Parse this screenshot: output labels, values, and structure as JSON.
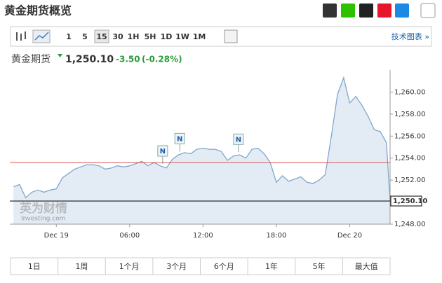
{
  "header": {
    "title": "黄金期货概览"
  },
  "toolbar": {
    "intervals": [
      "1",
      "5",
      "15",
      "30",
      "1H",
      "5H",
      "1D",
      "1W",
      "1M"
    ],
    "technical_chart": "技术图表 »"
  },
  "quote": {
    "name": "黄金期货",
    "price": "1,250.10",
    "change": "-3.50",
    "change_pct": "(-0.28%)"
  },
  "watermark": [
    "英为财情",
    "Investing.com"
  ],
  "chart_data": {
    "type": "area",
    "color": "#7fa6cc",
    "fill": "#e3ecf5",
    "x": [
      -3.5,
      -3,
      -2.5,
      -2,
      -1.5,
      -1,
      -0.5,
      0,
      0.5,
      1,
      1.5,
      2,
      2.5,
      3,
      3.5,
      4,
      4.5,
      5,
      5.5,
      6,
      6.5,
      7,
      7.5,
      8,
      8.5,
      9,
      9.5,
      10,
      10.5,
      11,
      11.5,
      12,
      12.5,
      13,
      13.5,
      14,
      14.5,
      15,
      15.5,
      16,
      16.5,
      17,
      17.5,
      18,
      18.5,
      19,
      19.5,
      20,
      20.5,
      21,
      21.5,
      22,
      22.5,
      23,
      23.5,
      24,
      24.5,
      25,
      25.5,
      26,
      26.5,
      27,
      27.3
    ],
    "values": [
      1251.4,
      1251.6,
      1250.4,
      1250.9,
      1251.1,
      1250.9,
      1251.1,
      1251.2,
      1252.2,
      1252.6,
      1253.0,
      1253.2,
      1253.4,
      1253.4,
      1253.3,
      1253.0,
      1253.1,
      1253.3,
      1253.2,
      1253.3,
      1253.5,
      1253.7,
      1253.3,
      1253.6,
      1253.3,
      1253.1,
      1253.9,
      1254.3,
      1254.5,
      1254.4,
      1254.8,
      1254.9,
      1254.8,
      1254.8,
      1254.6,
      1253.8,
      1254.2,
      1254.3,
      1254.0,
      1254.8,
      1254.9,
      1254.4,
      1253.6,
      1251.8,
      1252.4,
      1251.9,
      1252.1,
      1252.3,
      1251.8,
      1251.7,
      1252.0,
      1252.5,
      1256.0,
      1259.8,
      1261.3,
      1259.0,
      1259.6,
      1258.8,
      1257.8,
      1256.6,
      1256.4,
      1255.4,
      1250.1
    ],
    "xlim": [
      -3.8,
      27.3
    ],
    "ylim": [
      1248,
      1262
    ],
    "xticks": [
      {
        "value": 0,
        "label": "Dec 19"
      },
      {
        "value": 6,
        "label": "06:00"
      },
      {
        "value": 12,
        "label": "12:00"
      },
      {
        "value": 18,
        "label": "18:00"
      },
      {
        "value": 24,
        "label": "Dec 20"
      }
    ],
    "yticks": [
      {
        "value": 1248,
        "label": "1,248.00"
      },
      {
        "value": 1252,
        "label": "1,252.00"
      },
      {
        "value": 1254,
        "label": "1,254.00"
      },
      {
        "value": 1256,
        "label": "1,256.00"
      },
      {
        "value": 1258,
        "label": "1,258.00"
      },
      {
        "value": 1260,
        "label": "1,260.00"
      }
    ],
    "reference_lines": [
      {
        "value": 1253.6,
        "color": "#d9534f"
      },
      {
        "value": 1250.1,
        "color": "#000000",
        "label": "1,250.10"
      }
    ],
    "markers": [
      {
        "x": 8.7,
        "label": "N"
      },
      {
        "x": 10.1,
        "label": "N"
      },
      {
        "x": 14.9,
        "label": "N"
      }
    ]
  },
  "ranges": [
    "1日",
    "1周",
    "1个月",
    "3个月",
    "6个月",
    "1年",
    "5年",
    "最大值"
  ]
}
